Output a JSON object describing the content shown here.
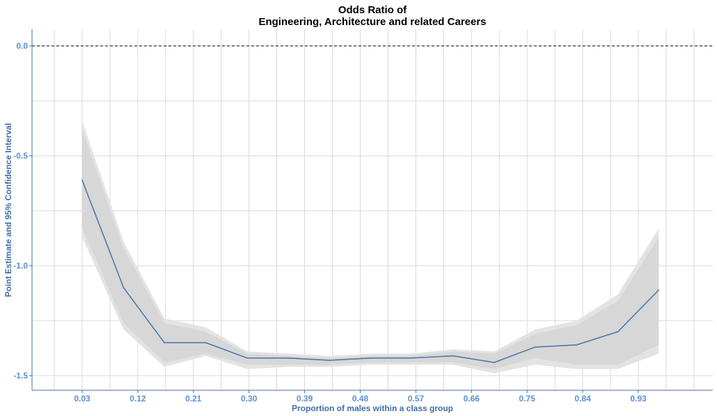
{
  "chart_data": {
    "type": "line",
    "title": [
      "Odds Ratio of",
      "Engineering, Architecture and related Careers"
    ],
    "xlabel": "Proportion of males within a class group",
    "ylabel": "Point Estimate and 95% Confidence Interval",
    "xlim": [
      0.03,
      0.93
    ],
    "ylim": [
      -1.5,
      0.0
    ],
    "xticks": [
      "0.03",
      "0.12",
      "0.21",
      "0.30",
      "0.39",
      "0.48",
      "0.57",
      "0.66",
      "0.75",
      "0.84",
      "0.93"
    ],
    "yticks": [
      "0.0",
      "-0.5",
      "-1.0",
      "-1.5"
    ],
    "grid": true,
    "reference_line": 0.0,
    "x": [
      0.03,
      0.097,
      0.163,
      0.23,
      0.297,
      0.363,
      0.43,
      0.497,
      0.563,
      0.63,
      0.697,
      0.763,
      0.83,
      0.897,
      0.963
    ],
    "estimate": [
      -0.61,
      -1.1,
      -1.35,
      -1.35,
      -1.42,
      -1.42,
      -1.43,
      -1.42,
      -1.42,
      -1.41,
      -1.44,
      -1.37,
      -1.36,
      -1.3,
      -1.11
    ],
    "ci_outer": {
      "upper": [
        -0.34,
        -0.89,
        -1.24,
        -1.28,
        -1.39,
        -1.4,
        -1.41,
        -1.4,
        -1.4,
        -1.38,
        -1.39,
        -1.29,
        -1.25,
        -1.13,
        -0.83
      ],
      "lower": [
        -0.87,
        -1.29,
        -1.46,
        -1.41,
        -1.47,
        -1.46,
        -1.46,
        -1.45,
        -1.45,
        -1.45,
        -1.49,
        -1.45,
        -1.47,
        -1.47,
        -1.4
      ]
    },
    "ci_inner": {
      "upper": [
        -0.38,
        -0.92,
        -1.26,
        -1.3,
        -1.4,
        -1.41,
        -1.42,
        -1.41,
        -1.41,
        -1.39,
        -1.4,
        -1.31,
        -1.27,
        -1.16,
        -0.87
      ],
      "lower": [
        -0.83,
        -1.26,
        -1.44,
        -1.4,
        -1.45,
        -1.45,
        -1.45,
        -1.44,
        -1.44,
        -1.44,
        -1.47,
        -1.42,
        -1.45,
        -1.45,
        -1.36
      ]
    },
    "colors": {
      "line": "#4f79a7",
      "band_outer": "#e3e3e3",
      "band_inner": "#d7d7d7",
      "grid": "#d9d9d9",
      "axis": "#3f6fa6",
      "reference_line": "#000000"
    }
  }
}
